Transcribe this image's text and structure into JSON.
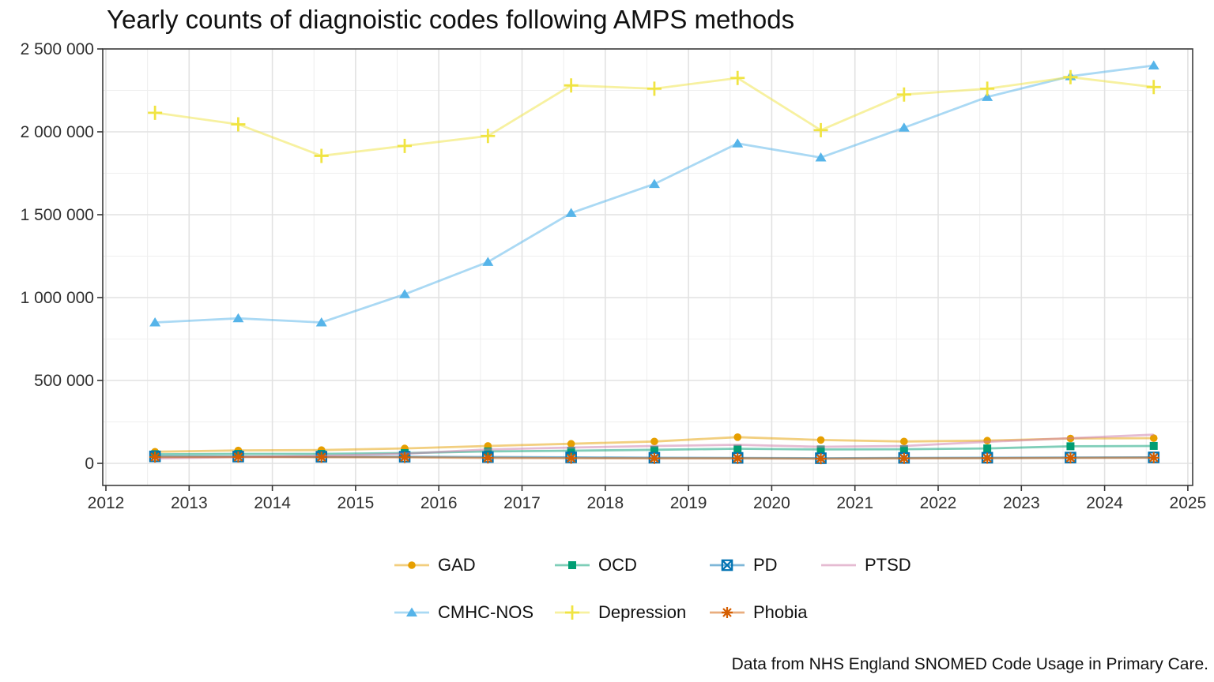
{
  "chart_data": {
    "type": "line",
    "title": "Yearly counts of diagnoistic codes following AMPS methods",
    "caption": "Data from NHS England SNOMED Code Usage in Primary Care.",
    "xlabel": "",
    "ylabel": "",
    "ylim": [
      0,
      2500000
    ],
    "xlim": [
      2012,
      2025
    ],
    "grid": "major+minor",
    "legend_position": "bottom",
    "x_years": [
      2012,
      2013,
      2014,
      2015,
      2016,
      2017,
      2018,
      2019,
      2020,
      2021,
      2022,
      2023,
      2024
    ],
    "point_year_offset": 0.59,
    "x_ticks": [
      "2012",
      "2013",
      "2014",
      "2015",
      "2016",
      "2017",
      "2018",
      "2019",
      "2020",
      "2021",
      "2022",
      "2023",
      "2024",
      "2025"
    ],
    "y_ticks": [
      {
        "value": 0,
        "label": "0"
      },
      {
        "value": 500000,
        "label": "500 000"
      },
      {
        "value": 1000000,
        "label": "1 000 000"
      },
      {
        "value": 1500000,
        "label": "1 500 000"
      },
      {
        "value": 2000000,
        "label": "2 000 000"
      },
      {
        "value": 2500000,
        "label": "2 500 000"
      }
    ],
    "series": [
      {
        "name": "GAD",
        "color": "#E69F00",
        "marker": "circle",
        "values": [
          70000,
          78000,
          80000,
          90000,
          105000,
          118000,
          132000,
          158000,
          141000,
          132000,
          137000,
          150000,
          152000
        ]
      },
      {
        "name": "OCD",
        "color": "#009E73",
        "marker": "square",
        "values": [
          55000,
          57000,
          57000,
          62000,
          72000,
          76000,
          82000,
          88000,
          84000,
          85000,
          90000,
          103000,
          105000
        ]
      },
      {
        "name": "PD",
        "color": "#0072B2",
        "marker": "box-x",
        "values": [
          42000,
          41000,
          40000,
          40000,
          38000,
          36000,
          34000,
          33000,
          31000,
          33000,
          34000,
          35000,
          36000
        ]
      },
      {
        "name": "PTSD",
        "color": "#CC79A7",
        "marker": "none",
        "values": [
          30000,
          38000,
          45000,
          58000,
          84000,
          95000,
          105000,
          112000,
          100000,
          105000,
          130000,
          152000,
          173000
        ]
      },
      {
        "name": "CMHC-NOS",
        "color": "#56B4E9",
        "marker": "triangle",
        "values": [
          850000,
          875000,
          850000,
          1020000,
          1215000,
          1510000,
          1685000,
          1930000,
          1845000,
          2025000,
          2210000,
          2335000,
          2400000
        ]
      },
      {
        "name": "Depression",
        "color": "#F0E442",
        "marker": "plus",
        "values": [
          2115000,
          2045000,
          1855000,
          1915000,
          1975000,
          2280000,
          2260000,
          2325000,
          2010000,
          2225000,
          2260000,
          2330000,
          2270000
        ]
      },
      {
        "name": "Phobia",
        "color": "#D55E00",
        "marker": "asterisk",
        "values": [
          38000,
          38000,
          37000,
          36000,
          33000,
          31000,
          30000,
          30000,
          28000,
          30000,
          31000,
          33000,
          34000
        ]
      }
    ],
    "legend_rows": [
      [
        "GAD",
        "OCD",
        "PD",
        "PTSD"
      ],
      [
        "CMHC-NOS",
        "Depression",
        "Phobia"
      ]
    ]
  }
}
